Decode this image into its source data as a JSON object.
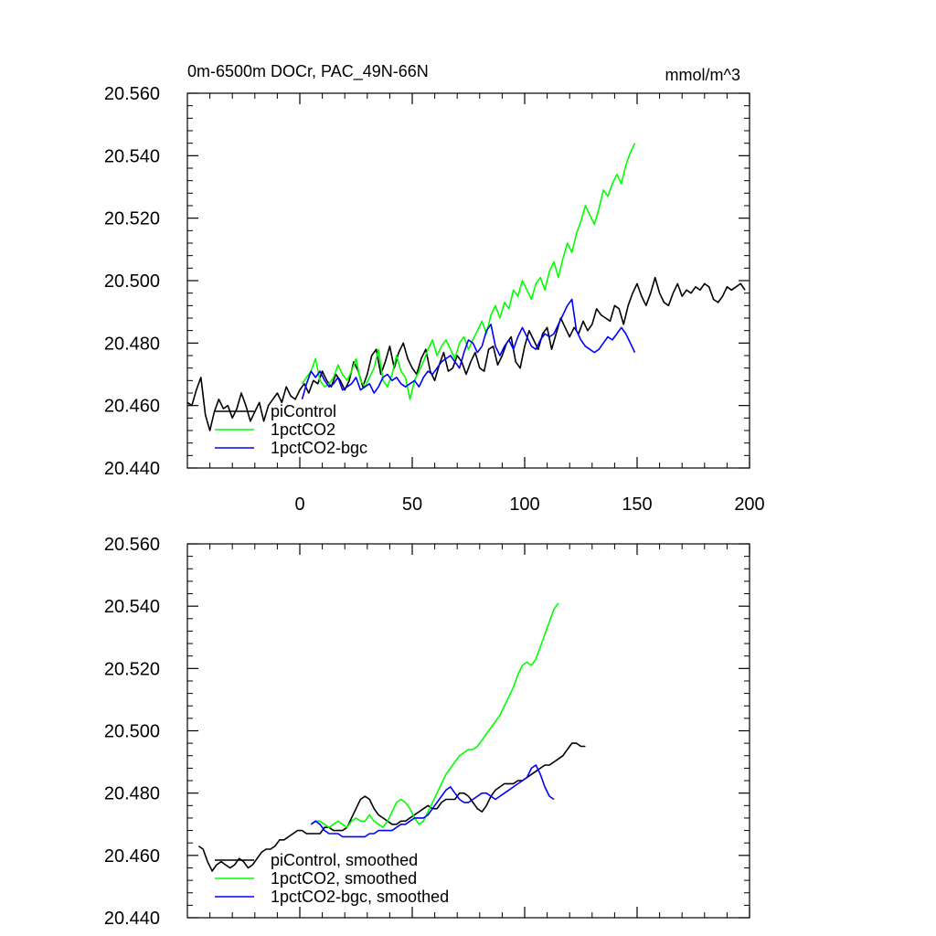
{
  "chart_data": [
    {
      "type": "line",
      "title": "0m-6500m DOCr, PAC_49N-66N",
      "units": "mmol/m^3",
      "xlim": [
        -50,
        200
      ],
      "ylim": [
        20.44,
        20.56
      ],
      "xticks": [
        0,
        50,
        100,
        150,
        200
      ],
      "yticks": [
        20.44,
        20.46,
        20.48,
        20.5,
        20.52,
        20.54,
        20.56
      ],
      "ytick_labels": [
        "20.440",
        "20.460",
        "20.480",
        "20.500",
        "20.520",
        "20.540",
        "20.560"
      ],
      "legend": [
        "piControl",
        "1pctCO2",
        "1pctCO2-bgc"
      ],
      "series": [
        {
          "name": "piControl",
          "color": "#000000",
          "x_start": -50,
          "x_step": 2,
          "values": [
            20.461,
            20.46,
            20.465,
            20.469,
            20.457,
            20.452,
            20.458,
            20.462,
            20.459,
            20.46,
            20.456,
            20.459,
            20.464,
            20.46,
            20.455,
            20.458,
            20.461,
            20.455,
            20.46,
            20.462,
            20.464,
            20.461,
            20.466,
            20.463,
            20.462,
            20.465,
            20.467,
            20.464,
            20.468,
            20.467,
            20.471,
            20.468,
            20.466,
            20.47,
            20.468,
            20.465,
            20.468,
            20.474,
            20.471,
            20.466,
            20.47,
            20.476,
            20.478,
            20.47,
            20.474,
            20.479,
            20.472,
            20.477,
            20.48,
            20.475,
            20.472,
            20.47,
            20.475,
            20.478,
            20.471,
            20.468,
            20.473,
            20.477,
            20.471,
            20.472,
            20.476,
            20.474,
            20.47,
            20.474,
            20.477,
            20.472,
            20.471,
            20.478,
            20.479,
            20.473,
            20.476,
            20.48,
            20.482,
            20.474,
            20.472,
            20.479,
            20.484,
            20.481,
            20.478,
            20.483,
            20.485,
            20.478,
            20.483,
            20.488,
            20.485,
            20.482,
            20.485,
            20.483,
            20.487,
            20.484,
            20.486,
            20.491,
            20.489,
            20.488,
            20.487,
            20.492,
            20.491,
            20.486,
            20.492,
            20.496,
            20.499,
            20.495,
            20.492,
            20.496,
            20.501,
            20.496,
            20.493,
            20.492,
            20.496,
            20.499,
            20.495,
            20.497,
            20.496,
            20.498,
            20.497,
            20.499,
            20.498,
            20.494,
            20.493,
            20.495,
            20.498,
            20.497,
            20.498,
            20.499,
            20.497
          ]
        },
        {
          "name": "1pctCO2",
          "color": "#00ff00",
          "x_start": 1,
          "x_step": 2,
          "values": [
            20.467,
            20.469,
            20.471,
            20.475,
            20.468,
            20.466,
            20.467,
            20.469,
            20.473,
            20.47,
            20.468,
            20.471,
            20.475,
            20.468,
            20.466,
            20.469,
            20.472,
            20.478,
            20.468,
            20.466,
            20.47,
            20.476,
            20.471,
            20.469,
            20.462,
            20.468,
            20.471,
            20.474,
            20.478,
            20.481,
            20.476,
            20.479,
            20.481,
            20.478,
            20.475,
            20.48,
            20.482,
            20.478,
            20.481,
            20.484,
            20.487,
            20.483,
            20.489,
            20.492,
            20.488,
            20.493,
            20.491,
            20.497,
            20.495,
            20.5,
            20.497,
            20.494,
            20.499,
            20.501,
            20.497,
            20.503,
            20.506,
            20.501,
            20.507,
            20.512,
            20.509,
            20.515,
            20.519,
            20.524,
            20.521,
            20.518,
            20.523,
            20.529,
            20.527,
            20.531,
            20.534,
            20.531,
            20.537,
            20.541,
            20.544
          ]
        },
        {
          "name": "1pctCO2-bgc",
          "color": "#0000ff",
          "x_start": 1,
          "x_step": 2,
          "values": [
            20.462,
            20.467,
            20.471,
            20.469,
            20.471,
            20.468,
            20.466,
            20.467,
            20.469,
            20.465,
            20.466,
            20.467,
            20.469,
            20.465,
            20.466,
            20.467,
            20.464,
            20.466,
            20.469,
            20.47,
            20.468,
            20.469,
            20.467,
            20.466,
            20.467,
            20.468,
            20.466,
            20.469,
            20.471,
            20.47,
            20.472,
            20.474,
            20.475,
            20.476,
            20.474,
            20.472,
            20.477,
            20.481,
            20.48,
            20.477,
            20.479,
            20.484,
            20.486,
            20.479,
            20.476,
            20.479,
            20.481,
            20.478,
            20.482,
            20.485,
            20.482,
            20.479,
            20.478,
            20.481,
            20.483,
            20.482,
            20.483,
            20.486,
            20.489,
            20.492,
            20.494,
            20.484,
            20.481,
            20.479,
            20.478,
            20.477,
            20.478,
            20.48,
            20.482,
            20.481,
            20.483,
            20.485,
            20.483,
            20.48,
            20.477
          ]
        }
      ]
    },
    {
      "type": "line",
      "title": "",
      "units": "",
      "xlim": [
        -50,
        200
      ],
      "ylim": [
        20.44,
        20.56
      ],
      "xticks": [
        0,
        50,
        100,
        150,
        200
      ],
      "yticks": [
        20.44,
        20.46,
        20.48,
        20.5,
        20.52,
        20.54,
        20.56
      ],
      "ytick_labels": [
        "20.440",
        "20.460",
        "20.480",
        "20.500",
        "20.520",
        "20.540",
        "20.560"
      ],
      "legend": [
        "piControl, smoothed",
        "1pctCO2, smoothed",
        "1pctCO2-bgc, smoothed"
      ],
      "series": [
        {
          "name": "piControl, smoothed",
          "color": "#000000",
          "x_start": -45,
          "x_step": 2,
          "values": [
            20.463,
            20.462,
            20.458,
            20.455,
            20.457,
            20.458,
            20.457,
            20.456,
            20.457,
            20.459,
            20.458,
            20.456,
            20.457,
            20.459,
            20.461,
            20.462,
            20.462,
            20.463,
            20.465,
            20.465,
            20.466,
            20.467,
            20.468,
            20.468,
            20.467,
            20.467,
            20.467,
            20.467,
            20.469,
            20.469,
            20.468,
            20.468,
            20.468,
            20.469,
            20.472,
            20.475,
            20.478,
            20.479,
            20.478,
            20.475,
            20.473,
            20.472,
            20.471,
            20.47,
            20.47,
            20.471,
            20.471,
            20.472,
            20.473,
            20.474,
            20.475,
            20.476,
            20.475,
            20.475,
            20.477,
            20.478,
            20.478,
            20.478,
            20.48,
            20.48,
            20.479,
            20.477,
            20.475,
            20.474,
            20.476,
            20.479,
            20.481,
            20.482,
            20.483,
            20.483,
            20.483,
            20.484,
            20.484,
            20.485,
            20.486,
            20.487,
            20.488,
            20.489,
            20.489,
            20.49,
            20.491,
            20.492,
            20.494,
            20.496,
            20.496,
            20.495,
            20.495
          ]
        },
        {
          "name": "1pctCO2, smoothed",
          "color": "#00ff00",
          "x_start": 5,
          "x_step": 2,
          "values": [
            20.47,
            20.471,
            20.471,
            20.47,
            20.469,
            20.47,
            20.471,
            20.47,
            20.469,
            20.471,
            20.472,
            20.471,
            20.471,
            20.473,
            20.471,
            20.47,
            20.469,
            20.471,
            20.474,
            20.477,
            20.478,
            20.477,
            20.475,
            20.472,
            20.47,
            20.471,
            20.474,
            20.477,
            20.48,
            20.483,
            20.486,
            20.488,
            20.49,
            20.492,
            20.493,
            20.494,
            20.494,
            20.495,
            20.497,
            20.499,
            20.501,
            20.503,
            20.505,
            20.508,
            20.511,
            20.514,
            20.518,
            20.521,
            20.522,
            20.521,
            20.523,
            20.527,
            20.531,
            20.535,
            20.539,
            20.541
          ]
        },
        {
          "name": "1pctCO2-bgc, smoothed",
          "color": "#0000ff",
          "x_start": 5,
          "x_step": 2,
          "values": [
            20.47,
            20.471,
            20.47,
            20.468,
            20.467,
            20.467,
            20.467,
            20.466,
            20.466,
            20.466,
            20.466,
            20.466,
            20.466,
            20.467,
            20.467,
            20.468,
            20.468,
            20.468,
            20.468,
            20.469,
            20.47,
            20.47,
            20.471,
            20.472,
            20.472,
            20.472,
            20.473,
            20.475,
            20.477,
            20.479,
            20.481,
            20.482,
            20.48,
            20.478,
            20.477,
            20.477,
            20.478,
            20.479,
            20.48,
            20.48,
            20.479,
            20.478,
            20.479,
            20.48,
            20.481,
            20.482,
            20.483,
            20.484,
            20.485,
            20.488,
            20.489,
            20.486,
            20.482,
            20.479,
            20.478
          ]
        }
      ]
    }
  ]
}
